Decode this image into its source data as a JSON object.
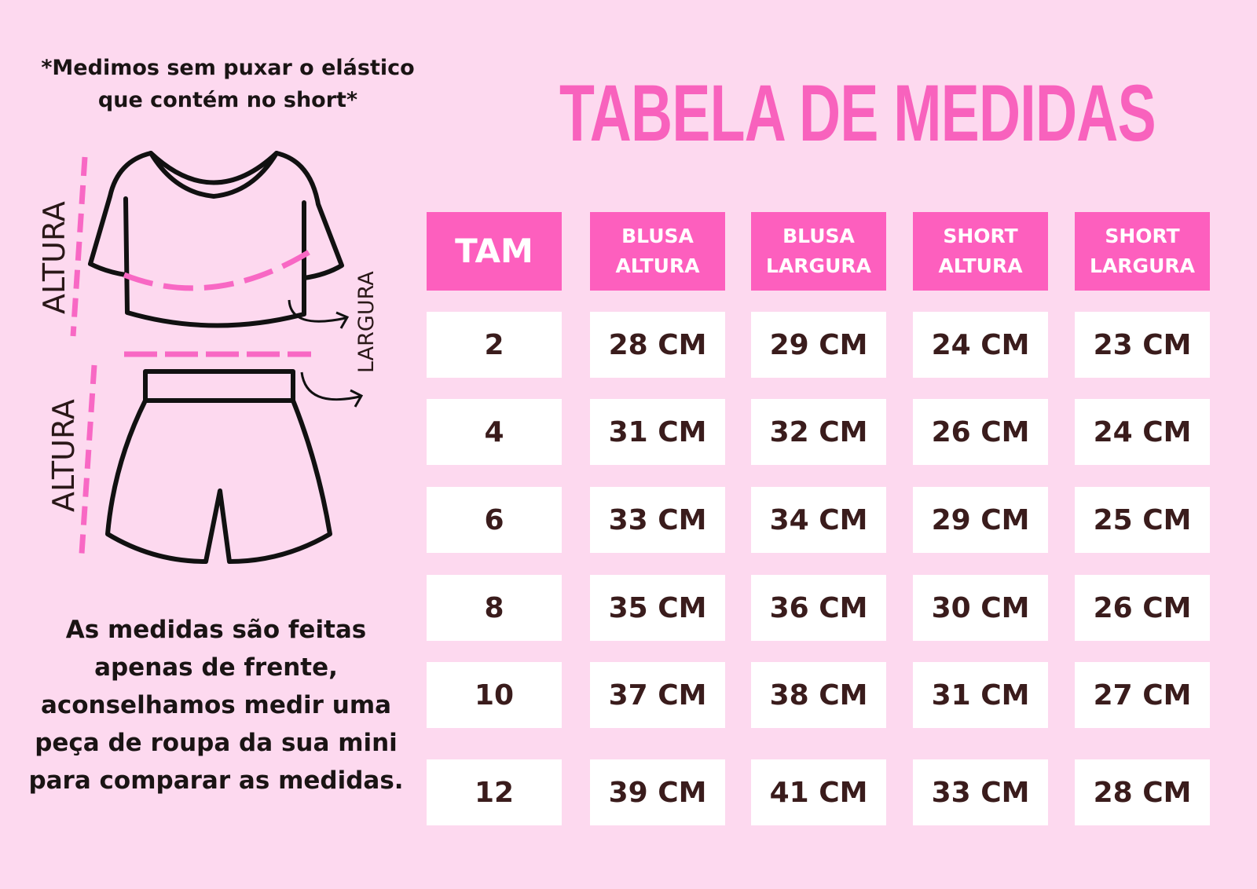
{
  "notes": {
    "top": "*Medimos sem puxar o elástico que contém no short*",
    "bottom": "As medidas são feitas apenas de frente, aconselhamos medir uma peça de roupa da sua mini para comparar as medidas."
  },
  "illustration": {
    "blouse_height_label": "ALTURA",
    "width_label": "LARGURA",
    "short_height_label": "ALTURA"
  },
  "title": "TABELA DE MEDIDAS",
  "colors": {
    "background": "#fdd9ef",
    "accent": "#fd5fbe",
    "title": "#f862bd",
    "text": "#3a1c1c"
  },
  "table": {
    "headers": [
      "TAM",
      "BLUSA ALTURA",
      "BLUSA LARGURA",
      "SHORT ALTURA",
      "SHORT LARGURA"
    ],
    "rows": [
      [
        "2",
        "28 CM",
        "29 CM",
        "24 CM",
        "23 CM"
      ],
      [
        "4",
        "31 CM",
        "32 CM",
        "26 CM",
        "24 CM"
      ],
      [
        "6",
        "33 CM",
        "34 CM",
        "29 CM",
        "25 CM"
      ],
      [
        "8",
        "35 CM",
        "36 CM",
        "30 CM",
        "26 CM"
      ],
      [
        "10",
        "37 CM",
        "38 CM",
        "31 CM",
        "27 CM"
      ],
      [
        "12",
        "39 CM",
        "41 CM",
        "33 CM",
        "28 CM"
      ]
    ]
  }
}
